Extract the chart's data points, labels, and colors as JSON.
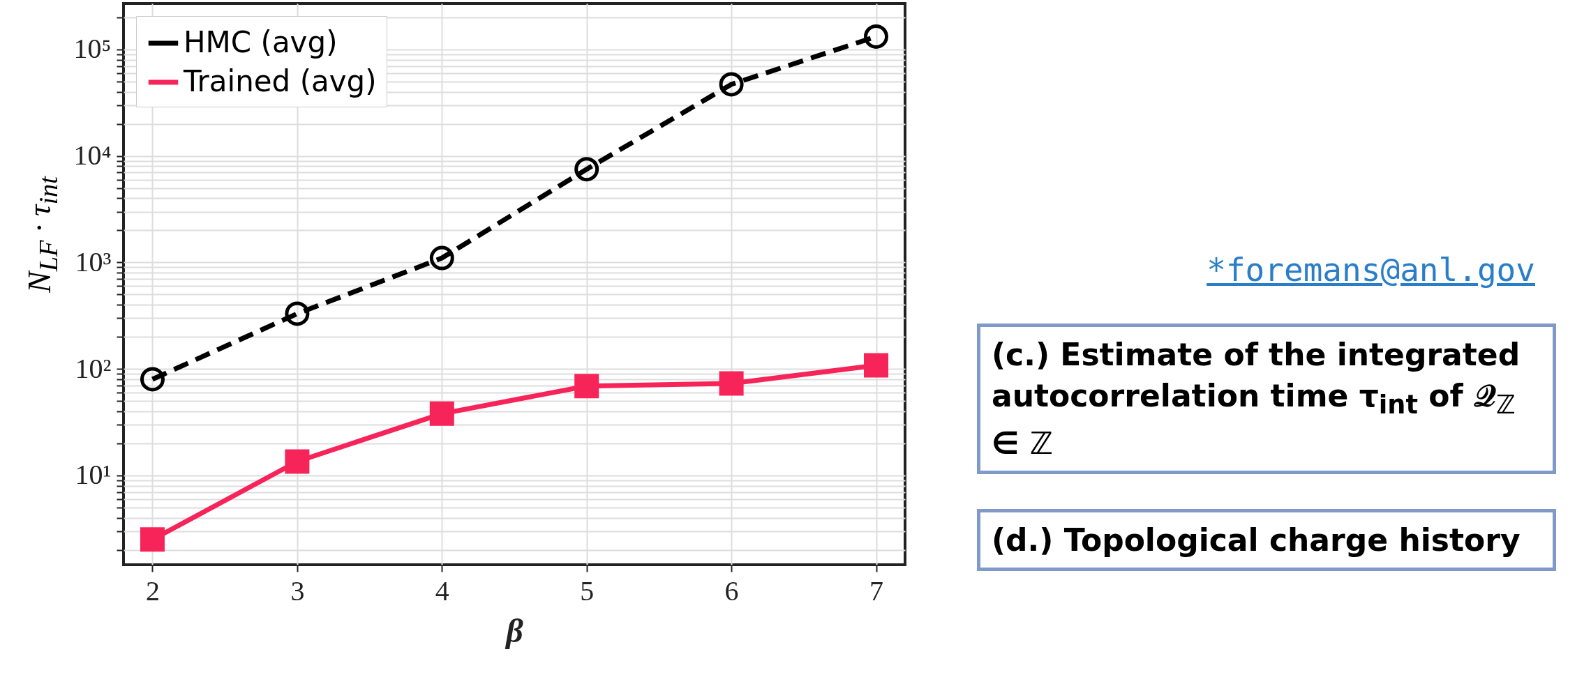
{
  "chart_data": {
    "type": "line",
    "xlabel": "β",
    "ylabel": "N$_{LF}$ · τ$_{int}$",
    "x": [
      2,
      3,
      4,
      5,
      6,
      7
    ],
    "series": [
      {
        "name": "HMC (avg)",
        "color": "#000000",
        "values": [
          80,
          330,
          1100,
          7500,
          47000,
          132000
        ],
        "line_style": "dashed",
        "marker": "circle"
      },
      {
        "name": "Trained (avg)",
        "color": "#f7245a",
        "values": [
          2.5,
          13.5,
          38,
          69,
          73,
          108
        ],
        "line_style": "solid",
        "marker": "square"
      }
    ],
    "log": "y",
    "xlim": [
      1.8,
      7.2
    ],
    "xticks": [
      2,
      3,
      4,
      5,
      6,
      7
    ],
    "ylim": [
      1.45,
      270000
    ],
    "yticks": [
      {
        "value": 2,
        "label": null
      },
      {
        "value": 3,
        "label": null
      },
      {
        "value": 4,
        "label": null
      },
      {
        "value": 5,
        "label": null
      },
      {
        "value": 6,
        "label": null
      },
      {
        "value": 7,
        "label": null
      },
      {
        "value": 8,
        "label": null
      },
      {
        "value": 9,
        "label": null
      },
      {
        "value": 10,
        "label": "10¹"
      },
      {
        "value": 20,
        "label": null
      },
      {
        "value": 30,
        "label": null
      },
      {
        "value": 40,
        "label": null
      },
      {
        "value": 50,
        "label": null
      },
      {
        "value": 60,
        "label": null
      },
      {
        "value": 70,
        "label": null
      },
      {
        "value": 80,
        "label": null
      },
      {
        "value": 90,
        "label": null
      },
      {
        "value": 100,
        "label": "10²"
      },
      {
        "value": 200,
        "label": null
      },
      {
        "value": 300,
        "label": null
      },
      {
        "value": 400,
        "label": null
      },
      {
        "value": 500,
        "label": null
      },
      {
        "value": 600,
        "label": null
      },
      {
        "value": 700,
        "label": null
      },
      {
        "value": 800,
        "label": null
      },
      {
        "value": 900,
        "label": null
      },
      {
        "value": 1000,
        "label": "10³"
      },
      {
        "value": 2000,
        "label": null
      },
      {
        "value": 3000,
        "label": null
      },
      {
        "value": 4000,
        "label": null
      },
      {
        "value": 5000,
        "label": null
      },
      {
        "value": 6000,
        "label": null
      },
      {
        "value": 7000,
        "label": null
      },
      {
        "value": 8000,
        "label": null
      },
      {
        "value": 9000,
        "label": null
      },
      {
        "value": 10000,
        "label": "10⁴"
      },
      {
        "value": 20000,
        "label": null
      },
      {
        "value": 30000,
        "label": null
      },
      {
        "value": 40000,
        "label": null
      },
      {
        "value": 50000,
        "label": null
      },
      {
        "value": 60000,
        "label": null
      },
      {
        "value": 70000,
        "label": null
      },
      {
        "value": 80000,
        "label": null
      },
      {
        "value": 90000,
        "label": null
      },
      {
        "value": 100000,
        "label": "10⁵"
      },
      {
        "value": 200000,
        "label": null
      }
    ],
    "grid": true,
    "legend": "top left",
    "annotations": [
      "*foremans@anl.gov",
      "(c.) Estimate of the integrated autocorrelation time τ$_{int}$ of 𝒬$_{ℤ}$ ∈ ℤ",
      "(d.) Topological charge history"
    ]
  }
}
